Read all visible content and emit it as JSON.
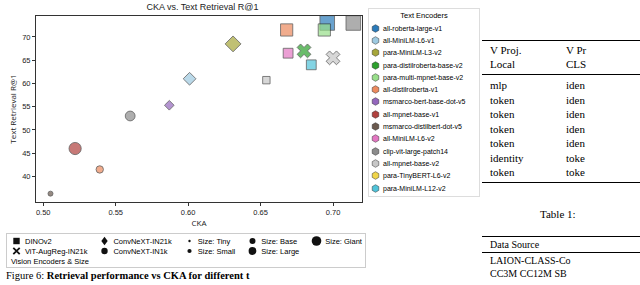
{
  "chart_data": {
    "type": "scatter",
    "title": "CKA vs. Text Retrieval R@1",
    "x_label": "CKA",
    "y_label": "Text Retrieval R@1",
    "xlim": [
      0.495,
      0.72
    ],
    "ylim": [
      34.5,
      74.5
    ],
    "xticks": [
      {
        "value": 0.5,
        "label": "0.50"
      },
      {
        "value": 0.55,
        "label": "0.55"
      },
      {
        "value": 0.6,
        "label": "0.60"
      },
      {
        "value": 0.65,
        "label": "0.65"
      },
      {
        "value": 0.7,
        "label": "0.70"
      }
    ],
    "yticks": [
      40,
      45,
      50,
      55,
      60,
      65,
      70
    ],
    "grid": false,
    "text_legend_title": "Text Encoders",
    "vision_legend_title": "Vision Encoders & Size",
    "text_encoders": [
      {
        "name": "all-roberta-large-v1",
        "color": "#2b7bba"
      },
      {
        "name": "all-MiniLM-L6-v1",
        "color": "#9ecae1"
      },
      {
        "name": "para-MiniLM-L3-v2",
        "color": "#a6a63a"
      },
      {
        "name": "para-distilroberta-base-v2",
        "color": "#2ca02c"
      },
      {
        "name": "para-multi-mpnet-base-v2",
        "color": "#98df8a"
      },
      {
        "name": "all-distilroberta-v1",
        "color": "#ec8a5e"
      },
      {
        "name": "msmarco-bert-base-dot-v5",
        "color": "#9467bd"
      },
      {
        "name": "all-mpnet-base-v1",
        "color": "#b0413e"
      },
      {
        "name": "msmarco-distilbert-dot-v5",
        "color": "#6b5a4e"
      },
      {
        "name": "all-MiniLM-L6-v2",
        "color": "#e377c2"
      },
      {
        "name": "clip-vit-large-patch14",
        "color": "#8c8c8c"
      },
      {
        "name": "all-mpnet-base-v2",
        "color": "#c7c7c7"
      },
      {
        "name": "para-TinyBERT-L6-v2",
        "color": "#f0d54a"
      },
      {
        "name": "para-MiniLM-L12-v2",
        "color": "#4fc3d9"
      }
    ],
    "vision_encoders": [
      {
        "name": "DINOv2",
        "marker": "square"
      },
      {
        "name": "ViT-AugReg-IN21k",
        "marker": "x"
      },
      {
        "name": "ConvNeXT-IN21k",
        "marker": "diamond"
      },
      {
        "name": "ConvNeXT-IN1k",
        "marker": "circle"
      }
    ],
    "sizes": [
      {
        "name": "Size: Tiny"
      },
      {
        "name": "Size: Small"
      },
      {
        "name": "Size: Base"
      },
      {
        "name": "Size: Large"
      },
      {
        "name": "Size: Giant"
      }
    ],
    "points": [
      {
        "x": 0.505,
        "y": 36.3,
        "text_encoder": "msmarco-distilbert-dot-v5",
        "vision_encoder": "ConvNeXT-IN1k",
        "size": "Size: Tiny"
      },
      {
        "x": 0.522,
        "y": 46.0,
        "text_encoder": "all-mpnet-base-v1",
        "vision_encoder": "ConvNeXT-IN1k",
        "size": "Size: Large"
      },
      {
        "x": 0.539,
        "y": 41.5,
        "text_encoder": "all-distilroberta-v1",
        "vision_encoder": "ConvNeXT-IN1k",
        "size": "Size: Small"
      },
      {
        "x": 0.56,
        "y": 53.0,
        "text_encoder": "clip-vit-large-patch14",
        "vision_encoder": "ConvNeXT-IN1k",
        "size": "Size: Base"
      },
      {
        "x": 0.587,
        "y": 55.3,
        "text_encoder": "msmarco-bert-base-dot-v5",
        "vision_encoder": "ConvNeXT-IN21k",
        "size": "Size: Small"
      },
      {
        "x": 0.601,
        "y": 61.0,
        "text_encoder": "all-MiniLM-L6-v1",
        "vision_encoder": "ConvNeXT-IN21k",
        "size": "Size: Base"
      },
      {
        "x": 0.631,
        "y": 68.5,
        "text_encoder": "para-MiniLM-L3-v2",
        "vision_encoder": "ConvNeXT-IN21k",
        "size": "Size: Large"
      },
      {
        "x": 0.654,
        "y": 60.7,
        "text_encoder": "all-mpnet-base-v2",
        "vision_encoder": "DINOv2",
        "size": "Size: Small"
      },
      {
        "x": 0.685,
        "y": 64.0,
        "text_encoder": "para-MiniLM-L12-v2",
        "vision_encoder": "DINOv2",
        "size": "Size: Base"
      },
      {
        "x": 0.669,
        "y": 66.5,
        "text_encoder": "all-MiniLM-L6-v2",
        "vision_encoder": "DINOv2",
        "size": "Size: Base"
      },
      {
        "x": 0.68,
        "y": 67.0,
        "text_encoder": "para-distilroberta-base-v2",
        "vision_encoder": "ViT-AugReg-IN21k",
        "size": "Size: Large"
      },
      {
        "x": 0.7,
        "y": 65.5,
        "text_encoder": "all-mpnet-base-v2",
        "vision_encoder": "ViT-AugReg-IN21k",
        "size": "Size: Large"
      },
      {
        "x": 0.668,
        "y": 71.5,
        "text_encoder": "all-distilroberta-v1",
        "vision_encoder": "DINOv2",
        "size": "Size: Large"
      },
      {
        "x": 0.694,
        "y": 71.5,
        "text_encoder": "para-multi-mpnet-base-v2",
        "vision_encoder": "DINOv2",
        "size": "Size: Large"
      },
      {
        "x": 0.696,
        "y": 73.0,
        "text_encoder": "all-roberta-large-v1",
        "vision_encoder": "DINOv2",
        "size": "Size: Giant"
      },
      {
        "x": 0.714,
        "y": 73.0,
        "text_encoder": "clip-vit-large-patch14",
        "vision_encoder": "DINOv2",
        "size": "Size: Giant"
      }
    ]
  },
  "caption": {
    "label": "Figure 6:",
    "text": "Retrieval performance vs CKA for different t"
  },
  "table": {
    "header": [
      [
        "V Proj.",
        "V Pr"
      ],
      [
        "Local",
        "CLS"
      ]
    ],
    "rows": [
      [
        "mlp",
        "iden"
      ],
      [
        "token",
        "iden"
      ],
      [
        "token",
        "iden"
      ],
      [
        "token",
        "iden"
      ],
      [
        "token",
        "iden"
      ],
      [
        "identity",
        "toke"
      ],
      [
        "token",
        "toke"
      ]
    ]
  },
  "table_caption": "Table 1:",
  "table2": {
    "header": [
      "Data Source"
    ],
    "rows": [
      [
        "LAION-CLASS-Co"
      ],
      [
        "CC3M CC12M SB"
      ]
    ]
  }
}
